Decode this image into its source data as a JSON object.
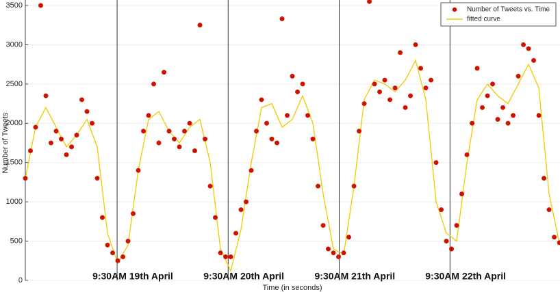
{
  "chart_data": {
    "type": "scatter",
    "xlabel": "Time (in seconds)",
    "ylabel": "Number of Tweets",
    "xlim": [
      0,
      416500
    ],
    "ylim": [
      0,
      3500
    ],
    "yticks": [
      0,
      500,
      1000,
      1500,
      2000,
      2500,
      3000,
      3500
    ],
    "grid": true,
    "legend": "upper right",
    "annotations": [
      {
        "x": 71500,
        "text": "9:30AM 19th April"
      },
      {
        "x": 158000,
        "text": "9:30AM 20th April"
      },
      {
        "x": 244500,
        "text": "9:30AM 21th April"
      },
      {
        "x": 330800,
        "text": "9:30AM 22th April"
      }
    ],
    "series": [
      {
        "name": "Number of Tweets vs. Time",
        "type": "scatter",
        "color": "#cc1100",
        "x": [
          0,
          4000,
          8000,
          12000,
          16000,
          20000,
          24000,
          28000,
          32000,
          36000,
          40000,
          44000,
          48000,
          52000,
          56000,
          60000,
          64000,
          68000,
          72000,
          76000,
          80000,
          84000,
          88000,
          92000,
          96000,
          100000,
          104000,
          108000,
          112000,
          116000,
          120000,
          124000,
          128000,
          132000,
          136000,
          140000,
          144000,
          148000,
          152000,
          156000,
          160000,
          164000,
          168000,
          172000,
          176000,
          180000,
          184000,
          188000,
          192000,
          196000,
          200000,
          204000,
          208000,
          212000,
          216000,
          220000,
          224000,
          228000,
          232000,
          236000,
          240000,
          244000,
          248000,
          252000,
          256000,
          260000,
          264000,
          268000,
          272000,
          276000,
          280000,
          284000,
          288000,
          292000,
          296000,
          300000,
          304000,
          308000,
          312000,
          316000,
          320000,
          324000,
          328000,
          332000,
          336000,
          340000,
          344000,
          348000,
          352000,
          356000,
          360000,
          364000,
          368000,
          372000,
          376000,
          380000,
          384000,
          388000,
          392000,
          396000,
          400000,
          404000,
          408000,
          412000,
          416000
        ],
        "values": [
          1300,
          1650,
          1950,
          3500,
          2350,
          1750,
          1900,
          1800,
          1600,
          1700,
          1850,
          2300,
          2150,
          2000,
          1300,
          800,
          450,
          350,
          250,
          300,
          500,
          850,
          1400,
          1900,
          2100,
          2500,
          1750,
          2650,
          1900,
          1800,
          1700,
          1900,
          2000,
          1650,
          3250,
          1800,
          1200,
          800,
          350,
          300,
          300,
          600,
          900,
          1000,
          1400,
          1900,
          2300,
          2000,
          1800,
          1750,
          3330,
          2100,
          2600,
          2400,
          2500,
          2100,
          1800,
          1200,
          700,
          400,
          350,
          300,
          350,
          550,
          1200,
          1900,
          2250,
          3550,
          2500,
          2400,
          2550,
          2300,
          2450,
          2900,
          2200,
          2350,
          3000,
          2700,
          2450,
          2550,
          1500,
          900,
          500,
          400,
          700,
          1100,
          1600,
          2000,
          2700,
          2200,
          2350,
          2500,
          2050,
          2200,
          2000,
          2100,
          2600,
          3000,
          2950,
          2800,
          2100,
          1300,
          900,
          550,
          480
        ]
      },
      {
        "name": "fitted curve",
        "type": "line",
        "color": "#f2cc0c",
        "x": [
          0,
          8000,
          16000,
          24000,
          32000,
          40000,
          48000,
          56000,
          64000,
          72000,
          80000,
          88000,
          96000,
          104000,
          112000,
          120000,
          128000,
          136000,
          144000,
          152000,
          160000,
          168000,
          176000,
          184000,
          192000,
          200000,
          208000,
          216000,
          224000,
          232000,
          240000,
          248000,
          256000,
          264000,
          272000,
          280000,
          288000,
          296000,
          304000,
          312000,
          320000,
          328000,
          336000,
          344000,
          352000,
          360000,
          368000,
          376000,
          384000,
          392000,
          400000,
          408000,
          416000
        ],
        "values": [
          1300,
          1950,
          2200,
          1950,
          1700,
          1850,
          2050,
          1700,
          600,
          220,
          450,
          1400,
          2050,
          2150,
          1900,
          1750,
          1950,
          2050,
          1500,
          400,
          120,
          650,
          1500,
          2200,
          2250,
          1950,
          2050,
          2350,
          2000,
          1100,
          400,
          330,
          1200,
          2300,
          2550,
          2500,
          2400,
          2550,
          2800,
          2300,
          1000,
          600,
          500,
          1500,
          2300,
          2500,
          2350,
          2250,
          2500,
          2750,
          2450,
          1100,
          480
        ]
      }
    ]
  }
}
